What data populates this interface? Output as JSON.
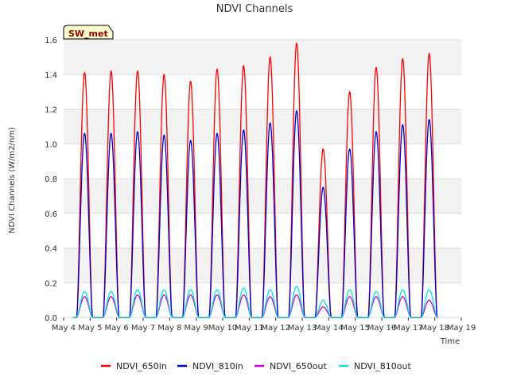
{
  "chart_data": {
    "type": "line",
    "title": "NDVI Channels",
    "xlabel": "Time",
    "ylabel": "NDVI Channels (W/m2/nm)",
    "badge": "SW_met",
    "ylim": [
      0.0,
      1.6
    ],
    "yticks": [
      "0.0",
      "0.2",
      "0.4",
      "0.6",
      "0.8",
      "1.0",
      "1.2",
      "1.4",
      "1.6"
    ],
    "xlim": [
      4,
      19
    ],
    "xticks": [
      "May 4",
      "May 5",
      "May 6",
      "May 7",
      "May 8",
      "May 9",
      "May 10",
      "May 11",
      "May 12",
      "May 13",
      "May 14",
      "May 15",
      "May 16",
      "May 17",
      "May 18",
      "May 19"
    ],
    "grid": true,
    "legend_position": "bottom",
    "days": [
      4.79,
      5.79,
      6.79,
      7.79,
      8.79,
      9.79,
      10.79,
      11.79,
      12.79,
      13.79,
      14.79,
      15.79,
      16.79,
      17.79
    ],
    "series": [
      {
        "name": "NDVI_650in",
        "color": "#ff0000",
        "peaks": [
          1.41,
          1.42,
          1.42,
          1.4,
          1.36,
          1.43,
          1.45,
          1.5,
          1.58,
          0.97,
          1.3,
          1.44,
          1.49,
          1.52
        ]
      },
      {
        "name": "NDVI_810in",
        "color": "#0000cc",
        "peaks": [
          1.06,
          1.06,
          1.07,
          1.05,
          1.02,
          1.06,
          1.08,
          1.12,
          1.19,
          0.75,
          0.97,
          1.07,
          1.11,
          1.14
        ]
      },
      {
        "name": "NDVI_650out",
        "color": "#cc00cc",
        "peaks": [
          0.12,
          0.12,
          0.13,
          0.13,
          0.13,
          0.13,
          0.13,
          0.12,
          0.13,
          0.06,
          0.12,
          0.12,
          0.12,
          0.1
        ]
      },
      {
        "name": "NDVI_810out",
        "color": "#00e5e5",
        "peaks": [
          0.15,
          0.15,
          0.16,
          0.16,
          0.16,
          0.16,
          0.17,
          0.16,
          0.18,
          0.1,
          0.16,
          0.15,
          0.16,
          0.16
        ]
      }
    ]
  }
}
